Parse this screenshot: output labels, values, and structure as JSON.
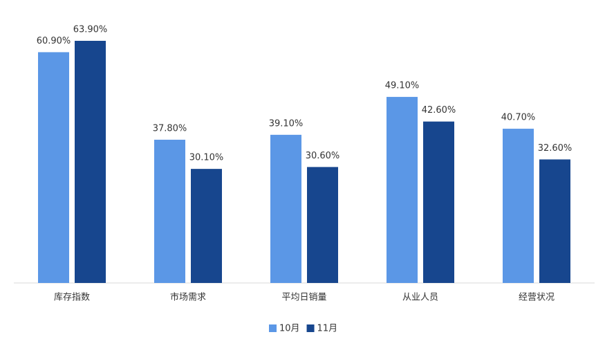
{
  "chart_data": {
    "type": "bar",
    "categories": [
      "库存指数",
      "市场需求",
      "平均日销量",
      "从业人员",
      "经营状况"
    ],
    "series": [
      {
        "name": "10月",
        "color": "#5b97e6",
        "values": [
          60.9,
          37.8,
          39.1,
          49.1,
          40.7
        ],
        "value_labels": [
          "60.90%",
          "37.80%",
          "39.10%",
          "49.10%",
          "40.70%"
        ]
      },
      {
        "name": "11月",
        "color": "#17468e",
        "values": [
          63.9,
          30.1,
          30.6,
          42.6,
          32.6
        ],
        "value_labels": [
          "63.90%",
          "30.10%",
          "30.60%",
          "42.60%",
          "32.60%"
        ]
      }
    ],
    "legend": "bottom"
  }
}
